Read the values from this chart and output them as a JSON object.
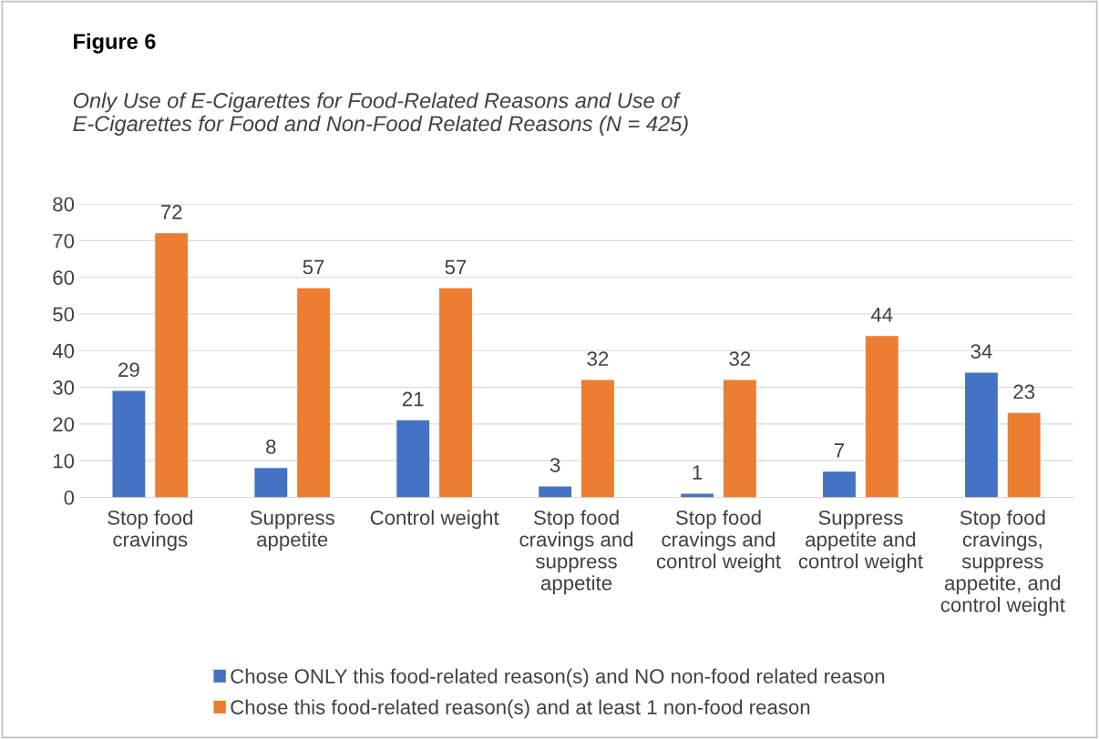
{
  "chart_data": {
    "type": "bar",
    "title": "Figure 6",
    "subtitle": "Only Use of E-Cigarettes for Food-Related Reasons and Use of E-Cigarettes for Food and Non-Food Related Reasons (N = 425)",
    "categories": [
      "Stop food cravings",
      "Suppress appetite",
      "Control weight",
      "Stop food cravings and suppress appetite",
      "Stop food cravings and control weight",
      "Suppress appetite and control weight",
      "Stop food cravings, suppress appetite, and control weight"
    ],
    "series": [
      {
        "name": "Chose ONLY this food-related reason(s) and NO non-food related reason",
        "color": "#4472c4",
        "values": [
          29,
          8,
          21,
          3,
          1,
          7,
          34
        ]
      },
      {
        "name": "Chose this food-related reason(s) and at least 1 non-food reason",
        "color": "#ed7d31",
        "values": [
          72,
          57,
          57,
          32,
          32,
          44,
          23
        ]
      }
    ],
    "ylim": [
      0,
      80
    ],
    "yticks": [
      0,
      10,
      20,
      30,
      40,
      50,
      60,
      70,
      80
    ],
    "grid": "y",
    "legend": "bottom",
    "data_labels": true
  }
}
